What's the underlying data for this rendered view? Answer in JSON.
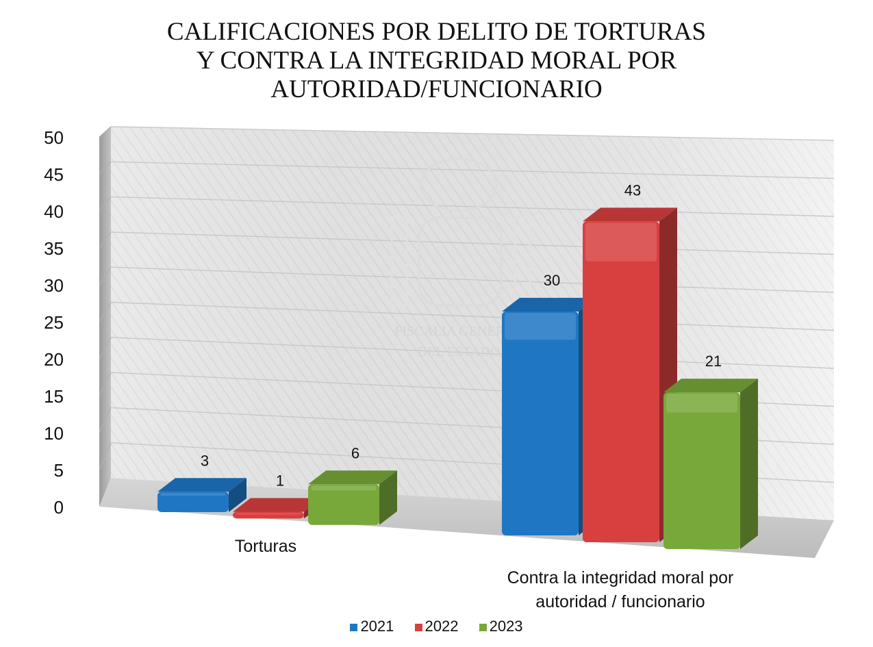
{
  "chart_data": {
    "type": "bar",
    "title_lines": [
      "CALIFICACIONES POR DELITO DE TORTURAS",
      "Y CONTRA LA INTEGRIDAD MORAL POR",
      "AUTORIDAD/FUNCIONARIO"
    ],
    "categories": [
      "Torturas",
      "Contra la integridad moral por autoridad / funcionario"
    ],
    "category_label_lines": [
      [
        "Torturas"
      ],
      [
        "Contra la integridad moral por",
        "autoridad / funcionario"
      ]
    ],
    "series": [
      {
        "name": "2021",
        "values": [
          3,
          30
        ],
        "color": "#1f77c4"
      },
      {
        "name": "2022",
        "values": [
          1,
          43
        ],
        "color": "#d84040"
      },
      {
        "name": "2023",
        "values": [
          6,
          21
        ],
        "color": "#78a83a"
      }
    ],
    "ylim": [
      0,
      50
    ],
    "yticks": [
      0,
      5,
      10,
      15,
      20,
      25,
      30,
      35,
      40,
      45,
      50
    ],
    "grid": true,
    "legend_position": "bottom",
    "three_d": true,
    "watermark_text": [
      "FISCALIA GENERAL",
      "DEL ESTADO"
    ]
  }
}
